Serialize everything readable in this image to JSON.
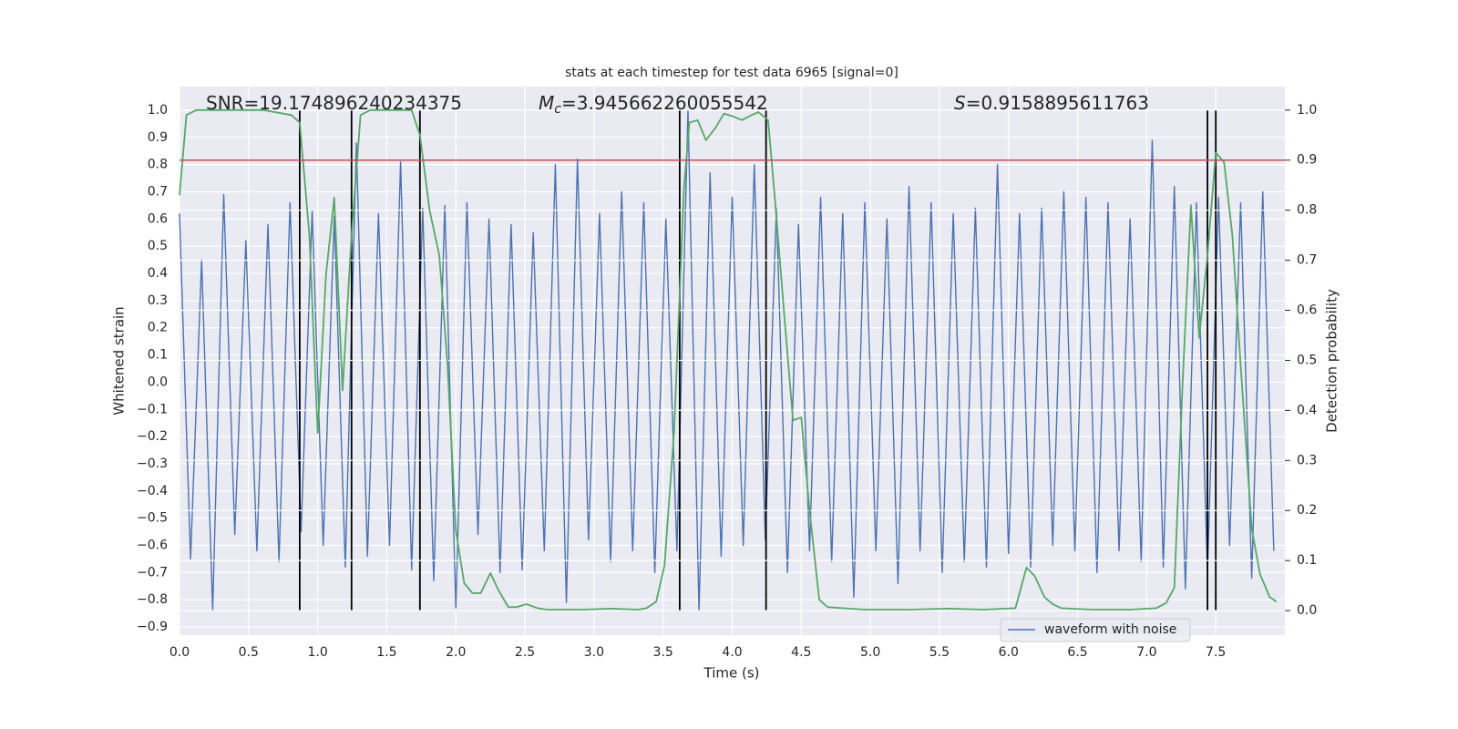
{
  "chart_data": {
    "type": "line",
    "title": "stats at each timestep for test data 6965 [signal=0]",
    "xlabel": "Time (s)",
    "ylabel": "Whitened strain",
    "y2label": "Detection probability",
    "annotations": [
      {
        "text": "SNR=19.174896240234375"
      },
      {
        "symbol": "M",
        "subscript": "c",
        "text": "=3.945662260055542"
      },
      {
        "symbol": "S",
        "text": "=0.9158895611763"
      }
    ],
    "xlim": [
      0,
      8
    ],
    "ylim": [
      -0.93,
      1.087
    ],
    "y2lim": [
      -0.049,
      1.047
    ],
    "xticks": [
      {
        "value": 0,
        "label": "0.0"
      },
      0.5,
      {
        "value": 1,
        "label": "1.0"
      },
      1.5,
      {
        "value": 2,
        "label": "2.0"
      },
      2.5,
      {
        "value": 3,
        "label": "3.0"
      },
      3.5,
      {
        "value": 4,
        "label": "4.0"
      },
      4.5,
      {
        "value": 5,
        "label": "5.0"
      },
      5.5,
      {
        "value": 6,
        "label": "6.0"
      },
      6.5,
      {
        "value": 7,
        "label": "7.0"
      },
      7.5
    ],
    "yticks": [
      {
        "value": -0.9,
        "label": "−0.9"
      },
      {
        "value": -0.8,
        "label": "−0.8"
      },
      {
        "value": -0.7,
        "label": "−0.7"
      },
      {
        "value": -0.6,
        "label": "−0.6"
      },
      {
        "value": -0.5,
        "label": "−0.5"
      },
      {
        "value": -0.4,
        "label": "−0.4"
      },
      {
        "value": -0.3,
        "label": "−0.3"
      },
      {
        "value": -0.2,
        "label": "−0.2"
      },
      {
        "value": -0.1,
        "label": "−0.1"
      },
      {
        "value": 0,
        "label": "0.0"
      },
      0.1,
      0.2,
      0.3,
      0.4,
      0.5,
      0.6,
      0.7,
      0.8,
      0.9,
      {
        "value": 1,
        "label": "1.0"
      }
    ],
    "y2ticks": [
      {
        "value": 0,
        "label": "0.0"
      },
      0.1,
      0.2,
      0.3,
      0.4,
      0.5,
      0.6,
      0.7,
      0.8,
      0.9,
      {
        "value": 1,
        "label": "1.0"
      }
    ],
    "grid": true,
    "legend": "lower right",
    "series": [
      {
        "name": "waveform with noise",
        "color": "#4c72b0",
        "x": [
          0,
          0.08,
          0.16,
          0.24,
          0.32,
          0.4,
          0.48,
          0.56,
          0.64,
          0.72,
          0.8,
          0.88,
          0.96,
          1.04,
          1.12,
          1.2,
          1.28,
          1.36,
          1.44,
          1.52,
          1.6,
          1.68,
          1.76,
          1.84,
          1.92,
          2,
          2.08,
          2.16,
          2.24,
          2.32,
          2.4,
          2.48,
          2.56,
          2.64,
          2.72,
          2.8,
          2.88,
          2.96,
          3.04,
          3.12,
          3.2,
          3.28,
          3.36,
          3.44,
          3.52,
          3.6,
          3.68,
          3.76,
          3.84,
          3.92,
          4,
          4.08,
          4.16,
          4.24,
          4.32,
          4.4,
          4.48,
          4.56,
          4.64,
          4.72,
          4.8,
          4.88,
          4.96,
          5.04,
          5.12,
          5.2,
          5.28,
          5.36,
          5.44,
          5.52,
          5.6,
          5.68,
          5.76,
          5.84,
          5.92,
          6,
          6.08,
          6.16,
          6.24,
          6.32,
          6.4,
          6.48,
          6.56,
          6.64,
          6.72,
          6.8,
          6.88,
          6.96,
          7.04,
          7.12,
          7.2,
          7.28,
          7.36,
          7.44,
          7.52,
          7.6,
          7.68,
          7.76,
          7.84,
          7.92
        ],
        "values": [
          0.62,
          -0.65,
          0.45,
          -0.84,
          0.69,
          -0.56,
          0.52,
          -0.62,
          0.58,
          -0.66,
          0.66,
          -0.55,
          0.63,
          -0.6,
          0.61,
          -0.68,
          0.88,
          -0.64,
          0.62,
          -0.6,
          0.81,
          -0.69,
          0.64,
          -0.73,
          0.65,
          -0.83,
          0.66,
          -0.56,
          0.6,
          -0.7,
          0.58,
          -0.69,
          0.55,
          -0.62,
          0.8,
          -0.81,
          0.82,
          -0.58,
          0.62,
          -0.66,
          0.7,
          -0.62,
          0.66,
          -0.7,
          0.6,
          -0.62,
          1.0,
          -0.84,
          0.77,
          -0.64,
          0.68,
          -0.6,
          0.8,
          -0.58,
          0.64,
          -0.7,
          0.58,
          -0.62,
          0.68,
          -0.66,
          0.62,
          -0.79,
          0.66,
          -0.62,
          0.6,
          -0.74,
          0.72,
          -0.62,
          0.66,
          -0.7,
          0.62,
          -0.66,
          0.64,
          -0.68,
          0.8,
          -0.63,
          0.62,
          -0.68,
          0.64,
          -0.6,
          0.7,
          -0.62,
          0.68,
          -0.7,
          0.66,
          -0.62,
          0.6,
          -0.66,
          0.89,
          -0.68,
          0.72,
          -0.76,
          0.66,
          -0.7,
          0.68,
          -0.6,
          0.66,
          -0.72,
          0.7,
          -0.62
        ]
      },
      {
        "color": "#55a868",
        "axis": "y2",
        "x": [
          0,
          0.05,
          0.12,
          0.61,
          0.81,
          0.87,
          0.94,
          1.0,
          1.06,
          1.12,
          1.18,
          1.245,
          1.31,
          1.38,
          1.53,
          1.68,
          1.74,
          1.81,
          1.88,
          1.94,
          2.0,
          2.06,
          2.12,
          2.18,
          2.25,
          2.31,
          2.38,
          2.44,
          2.51,
          2.59,
          2.66,
          2.92,
          3.12,
          3.32,
          3.38,
          3.45,
          3.51,
          3.58,
          3.65,
          3.69,
          3.75,
          3.81,
          3.88,
          3.94,
          4.01,
          4.07,
          4.14,
          4.19,
          4.26,
          4.31,
          4.38,
          4.44,
          4.5,
          4.56,
          4.63,
          4.69,
          4.96,
          5.29,
          5.56,
          5.82,
          6.05,
          6.13,
          6.19,
          6.26,
          6.32,
          6.38,
          6.61,
          6.88,
          7.07,
          7.14,
          7.2,
          7.26,
          7.32,
          7.38,
          7.44,
          7.5,
          7.56,
          7.62,
          7.68,
          7.76,
          7.82,
          7.89,
          7.94
        ],
        "values": [
          0.83,
          0.99,
          1.0,
          1.0,
          0.99,
          0.975,
          0.75,
          0.355,
          0.67,
          0.825,
          0.44,
          0.75,
          0.99,
          1.0,
          1.0,
          1.0,
          0.95,
          0.8,
          0.71,
          0.49,
          0.16,
          0.055,
          0.035,
          0.035,
          0.075,
          0.04,
          0.007,
          0.007,
          0.013,
          0.005,
          0.002,
          0.002,
          0.004,
          0.002,
          0.005,
          0.018,
          0.09,
          0.36,
          0.84,
          0.975,
          0.98,
          0.94,
          0.965,
          0.993,
          0.987,
          0.98,
          0.99,
          0.996,
          0.98,
          0.82,
          0.58,
          0.38,
          0.386,
          0.2,
          0.022,
          0.007,
          0.002,
          0.002,
          0.004,
          0.002,
          0.005,
          0.086,
          0.069,
          0.027,
          0.013,
          0.005,
          0.002,
          0.002,
          0.005,
          0.015,
          0.046,
          0.455,
          0.81,
          0.545,
          0.71,
          0.915,
          0.896,
          0.75,
          0.49,
          0.164,
          0.073,
          0.027,
          0.018
        ]
      }
    ],
    "vlines": {
      "x": [
        0.87,
        1.245,
        1.74,
        3.62,
        4.245,
        7.44,
        7.5
      ],
      "y2": [
        0,
        1
      ],
      "color": "#000000"
    },
    "threshold": {
      "y2": 0.9,
      "color": "#c44e52"
    }
  }
}
